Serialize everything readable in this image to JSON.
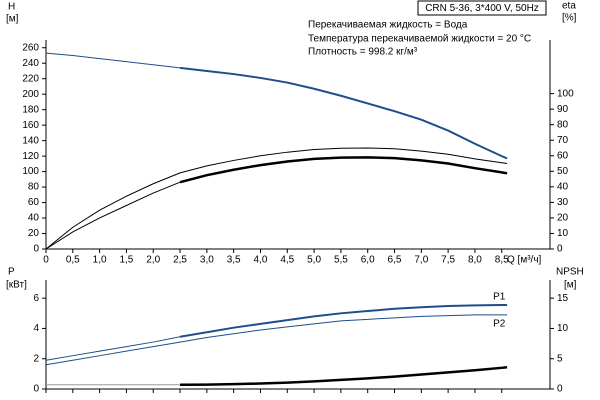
{
  "chart_data": [
    {
      "type": "line",
      "note": "CRN 5-36, 3*400 V, 50Hz",
      "annotations": [
        "Перекачиваемая жидкость = Вода",
        "Температура перекачиваемой жидкости = 20 °C",
        "Плотность = 998.2 кг/м³"
      ],
      "ylabel": "H",
      "yunit": "[м]",
      "y2label": "eta",
      "y2unit": "[%]",
      "xlabel": "Q [м³/ч]",
      "x": [
        0,
        0.5,
        1,
        1.5,
        2,
        2.5,
        3,
        3.5,
        4,
        4.5,
        5,
        5.5,
        6,
        6.5,
        7,
        7.5,
        8,
        8.5,
        8.6
      ],
      "xlim": [
        0,
        9.4
      ],
      "xticks": [
        0,
        {
          "value": 0.5,
          "label": "0,5"
        },
        {
          "value": 1,
          "label": "1,0"
        },
        {
          "value": 1.5,
          "label": "1,5"
        },
        {
          "value": 2,
          "label": "2,0"
        },
        {
          "value": 2.5,
          "label": "2,5"
        },
        {
          "value": 3,
          "label": "3,0"
        },
        {
          "value": 3.5,
          "label": "3,5"
        },
        {
          "value": 4,
          "label": "4,0"
        },
        {
          "value": 4.5,
          "label": "4,5"
        },
        {
          "value": 5,
          "label": "5,0"
        },
        {
          "value": 5.5,
          "label": "5,5"
        },
        {
          "value": 6,
          "label": "6,0"
        },
        {
          "value": 6.5,
          "label": "6,5"
        },
        {
          "value": 7,
          "label": "7,0"
        },
        {
          "value": 7.5,
          "label": "7,5"
        },
        {
          "value": 8,
          "label": "8,0"
        },
        {
          "value": 8.5,
          "label": "8,5"
        }
      ],
      "ylim": [
        0,
        270
      ],
      "yticks": [
        0,
        20,
        40,
        60,
        80,
        100,
        120,
        140,
        160,
        180,
        200,
        220,
        240,
        260
      ],
      "y2lim": [
        0,
        134.5
      ],
      "y2ticks": [
        0,
        10,
        20,
        30,
        40,
        50,
        60,
        70,
        80,
        90,
        100
      ],
      "series": [
        {
          "color": "#1f4e8c",
          "line_width": 1,
          "values": [
            253,
            250,
            246,
            242,
            238,
            234,
            null,
            null,
            null,
            null,
            null,
            null,
            null,
            null,
            null,
            null,
            null,
            null,
            null
          ]
        },
        {
          "color": "#1f4e8c",
          "line_width": 2,
          "values": [
            null,
            null,
            null,
            null,
            null,
            234,
            230,
            226,
            221,
            215,
            207,
            198,
            188,
            178,
            167,
            153,
            136,
            120,
            117
          ]
        },
        {
          "color": "#000000",
          "line_width": 1,
          "axis": "y2",
          "values": [
            0,
            14,
            25,
            34,
            42,
            49,
            53.5,
            57,
            60,
            62.3,
            64,
            64.8,
            65,
            64.5,
            63,
            61,
            58,
            55.5,
            55
          ]
        },
        {
          "color": "#000000",
          "line_width": 1,
          "axis": "y2",
          "values": [
            0,
            11,
            20,
            28,
            36,
            43,
            null,
            null,
            null,
            null,
            null,
            null,
            null,
            null,
            null,
            null,
            null,
            null,
            null
          ]
        },
        {
          "color": "#000000",
          "line_width": 2.5,
          "axis": "y2",
          "values": [
            null,
            null,
            null,
            null,
            null,
            43,
            47.5,
            51,
            54,
            56.3,
            58,
            58.8,
            59,
            58.5,
            57,
            55,
            52,
            49.3,
            48.7
          ]
        }
      ]
    },
    {
      "type": "line",
      "ylabel": "P",
      "yunit": "[кВт]",
      "y2label": "NPSH",
      "y2unit": "[м]",
      "x": [
        0,
        0.5,
        1,
        1.5,
        2,
        2.5,
        3,
        3.5,
        4,
        4.5,
        5,
        5.5,
        6,
        6.5,
        7,
        7.5,
        8,
        8.5,
        8.6
      ],
      "xlim": [
        0,
        9.4
      ],
      "ylim": [
        0,
        7.2
      ],
      "yticks": [
        0,
        2,
        4,
        6
      ],
      "y2lim": [
        0,
        18
      ],
      "y2ticks": [
        0,
        5,
        10,
        15
      ],
      "series": [
        {
          "color": "#1f4e8c",
          "line_width": 1,
          "values": [
            1.9,
            2.2,
            2.5,
            2.8,
            3.1,
            3.45,
            null,
            null,
            null,
            null,
            null,
            null,
            null,
            null,
            null,
            null,
            null,
            null,
            null
          ]
        },
        {
          "name": "P1",
          "color": "#1f4e8c",
          "line_width": 2,
          "values": [
            null,
            null,
            null,
            null,
            null,
            3.45,
            3.75,
            4.05,
            4.3,
            4.55,
            4.8,
            5.0,
            5.15,
            5.3,
            5.4,
            5.48,
            5.52,
            5.55,
            5.55
          ]
        },
        {
          "name": "P2",
          "color": "#1f4e8c",
          "line_width": 1,
          "values": [
            1.6,
            1.9,
            2.2,
            2.5,
            2.8,
            3.1,
            3.4,
            3.65,
            3.9,
            4.1,
            4.3,
            4.5,
            4.6,
            4.7,
            4.8,
            4.85,
            4.9,
            4.9,
            4.9
          ]
        },
        {
          "color": "#999999",
          "line_width": 1,
          "axis": "y2",
          "values": [
            0.7,
            0.7,
            0.7,
            0.7,
            0.7,
            0.7,
            null,
            null,
            null,
            null,
            null,
            null,
            null,
            null,
            null,
            null,
            null,
            null,
            null
          ]
        },
        {
          "color": "#000000",
          "line_width": 2.5,
          "axis": "y2",
          "values": [
            null,
            null,
            null,
            null,
            null,
            0.7,
            0.72,
            0.8,
            0.9,
            1.05,
            1.25,
            1.5,
            1.75,
            2.05,
            2.4,
            2.75,
            3.1,
            3.5,
            3.6
          ]
        }
      ]
    }
  ]
}
